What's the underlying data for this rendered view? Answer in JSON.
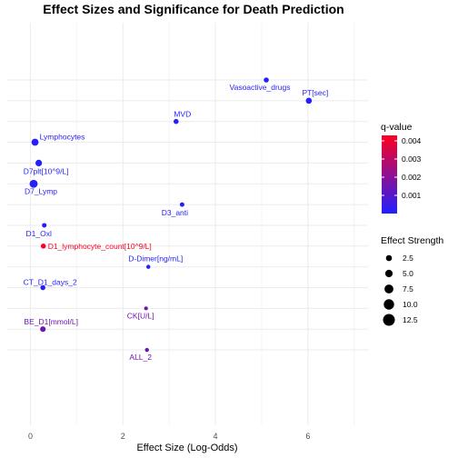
{
  "chart_data": {
    "type": "scatter",
    "title": "Effect Sizes and Significance for Death Prediction",
    "xlabel": "Effect Size (Log-Odds)",
    "ylabel": "",
    "xlim": [
      -0.5,
      7.3
    ],
    "x_ticks": [
      0,
      2,
      4,
      6
    ],
    "grid": true,
    "points": [
      {
        "label": "Vasoactive_drugs",
        "x": 5.1,
        "q": 0.0001,
        "size": 2.5
      },
      {
        "label": "PT[sec]",
        "x": 6.02,
        "q": 0.0001,
        "size": 3.5
      },
      {
        "label": "MVD",
        "x": 3.15,
        "q": 0.0001,
        "size": 2.5
      },
      {
        "label": "Lymphocytes",
        "x": 0.1,
        "q": 0.0001,
        "size": 4.5
      },
      {
        "label": "D7plt[10^9/L]",
        "x": 0.18,
        "q": 0.0001,
        "size": 4.0
      },
      {
        "label": "D7_Lymp",
        "x": 0.07,
        "q": 0.0001,
        "size": 5.5
      },
      {
        "label": "D3_anti",
        "x": 3.28,
        "q": 0.0001,
        "size": 2.0
      },
      {
        "label": "D1_Oxl",
        "x": 0.3,
        "q": 0.0001,
        "size": 2.0
      },
      {
        "label": "D1_lymphocyte_count[10^9/L]",
        "x": 0.28,
        "q": 0.0044,
        "size": 2.5
      },
      {
        "label": "D-Dimer[ng/mL]",
        "x": 2.55,
        "q": 0.0001,
        "size": 1.5
      },
      {
        "label": "CT_D1_days_2",
        "x": 0.27,
        "q": 0.0001,
        "size": 2.5
      },
      {
        "label": "CK[U/L]",
        "x": 2.5,
        "q": 0.0015,
        "size": 1.2
      },
      {
        "label": "BE_D1[mmol/L]",
        "x": 0.27,
        "q": 0.0015,
        "size": 3.0
      },
      {
        "label": "ALL_2",
        "x": 2.52,
        "q": 0.0015,
        "size": 1.5
      }
    ],
    "legend": {
      "color_title": "q-value",
      "color_range": [
        0.0,
        0.0043
      ],
      "color_ticks": [
        "0.004",
        "0.003",
        "0.002",
        "0.001"
      ],
      "color_low": "#2020ff",
      "color_high": "#ff0020",
      "size_title": "Effect Strength",
      "size_ticks": [
        "2.5",
        "5.0",
        "7.5",
        "10.0",
        "12.5"
      ],
      "placement": "right"
    }
  }
}
